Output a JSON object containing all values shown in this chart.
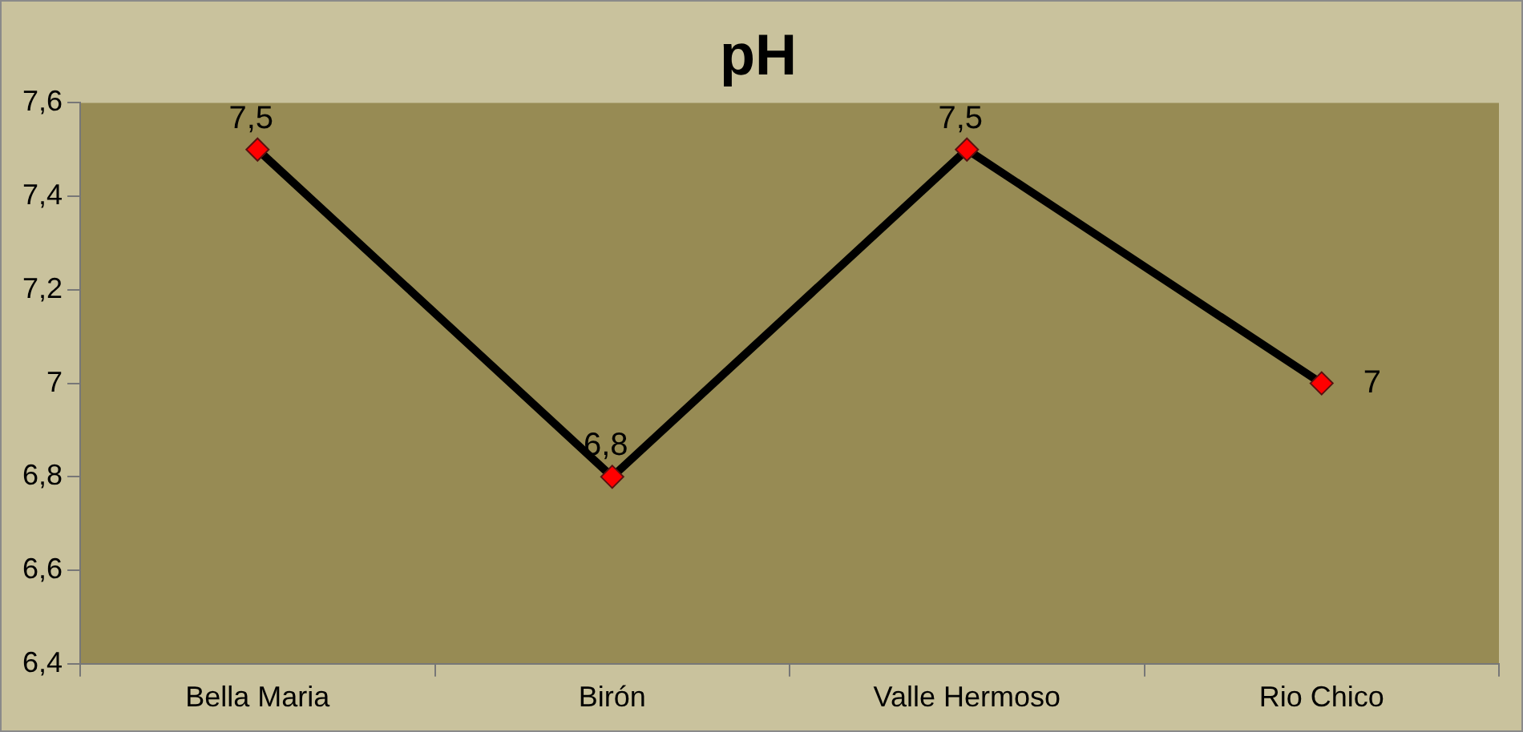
{
  "chart_data": {
    "type": "line",
    "title": "pH",
    "categories": [
      "Bella Maria",
      "Birón",
      "Valle Hermoso",
      "Rio Chico"
    ],
    "series": [
      {
        "color": "#000000",
        "values": [
          7.5,
          6.8,
          7.5,
          7
        ],
        "value_labels": [
          "7,5",
          "6,8",
          "7,5",
          "7"
        ]
      }
    ],
    "ylim": [
      6.4,
      7.6
    ],
    "yticks": [
      {
        "value": 6.4,
        "label": "6,4"
      },
      {
        "value": 6.6,
        "label": "6,6"
      },
      {
        "value": 6.8,
        "label": "6,8"
      },
      {
        "value": 7,
        "label": "7"
      },
      {
        "value": 7.2,
        "label": "7,2"
      },
      {
        "value": 7.4,
        "label": "7,4"
      },
      {
        "value": 7.6,
        "label": "7,6"
      }
    ],
    "grid": false,
    "legend": false,
    "marker": "diamond",
    "line_style": "solid"
  }
}
